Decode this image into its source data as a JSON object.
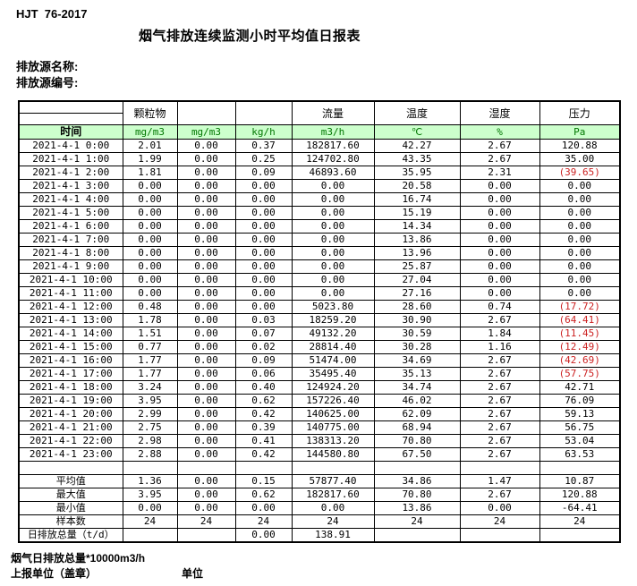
{
  "page": {
    "doc_code": "HJT  76-2017",
    "title": "烟气排放连续监测小时平均值日报表",
    "source_name_label": "排放源名称:",
    "source_code_label": "排放源编号:"
  },
  "colors": {
    "header_row_bg": "#ccffcc",
    "unit_text_green": "#007700",
    "out_of_range_red": "#cc2222"
  },
  "table": {
    "group_headers": [
      "",
      "颗粒物",
      "",
      "",
      "流量",
      "温度",
      "湿度",
      "压力"
    ],
    "time_header": "时间",
    "units": [
      "mg/m3",
      "mg/m3",
      "kg/h",
      "m3/h",
      "℃",
      "%",
      "Pa"
    ],
    "rows": [
      {
        "time": "2021-4-1 0:00",
        "values": [
          "2.01",
          "0.00",
          "0.37",
          "182817.60",
          "42.27",
          "2.67",
          "120.88"
        ]
      },
      {
        "time": "2021-4-1 1:00",
        "values": [
          "1.99",
          "0.00",
          "0.25",
          "124702.80",
          "43.35",
          "2.67",
          "35.00"
        ]
      },
      {
        "time": "2021-4-1 2:00",
        "values": [
          "1.81",
          "0.00",
          "0.09",
          "46893.60",
          "35.95",
          "2.31",
          "(39.65)"
        ]
      },
      {
        "time": "2021-4-1 3:00",
        "values": [
          "0.00",
          "0.00",
          "0.00",
          "0.00",
          "20.58",
          "0.00",
          "0.00"
        ]
      },
      {
        "time": "2021-4-1 4:00",
        "values": [
          "0.00",
          "0.00",
          "0.00",
          "0.00",
          "16.74",
          "0.00",
          "0.00"
        ]
      },
      {
        "time": "2021-4-1 5:00",
        "values": [
          "0.00",
          "0.00",
          "0.00",
          "0.00",
          "15.19",
          "0.00",
          "0.00"
        ]
      },
      {
        "time": "2021-4-1 6:00",
        "values": [
          "0.00",
          "0.00",
          "0.00",
          "0.00",
          "14.34",
          "0.00",
          "0.00"
        ]
      },
      {
        "time": "2021-4-1 7:00",
        "values": [
          "0.00",
          "0.00",
          "0.00",
          "0.00",
          "13.86",
          "0.00",
          "0.00"
        ]
      },
      {
        "time": "2021-4-1 8:00",
        "values": [
          "0.00",
          "0.00",
          "0.00",
          "0.00",
          "13.96",
          "0.00",
          "0.00"
        ]
      },
      {
        "time": "2021-4-1 9:00",
        "values": [
          "0.00",
          "0.00",
          "0.00",
          "0.00",
          "25.87",
          "0.00",
          "0.00"
        ]
      },
      {
        "time": "2021-4-1 10:00",
        "values": [
          "0.00",
          "0.00",
          "0.00",
          "0.00",
          "27.04",
          "0.00",
          "0.00"
        ]
      },
      {
        "time": "2021-4-1 11:00",
        "values": [
          "0.00",
          "0.00",
          "0.00",
          "0.00",
          "27.16",
          "0.00",
          "0.00"
        ]
      },
      {
        "time": "2021-4-1 12:00",
        "values": [
          "0.48",
          "0.00",
          "0.00",
          "5023.80",
          "28.60",
          "0.74",
          "(17.72)"
        ]
      },
      {
        "time": "2021-4-1 13:00",
        "values": [
          "1.78",
          "0.00",
          "0.03",
          "18259.20",
          "30.90",
          "2.67",
          "(64.41)"
        ]
      },
      {
        "time": "2021-4-1 14:00",
        "values": [
          "1.51",
          "0.00",
          "0.07",
          "49132.20",
          "30.59",
          "1.84",
          "(11.45)"
        ]
      },
      {
        "time": "2021-4-1 15:00",
        "values": [
          "0.77",
          "0.00",
          "0.02",
          "28814.40",
          "30.28",
          "1.16",
          "(12.49)"
        ]
      },
      {
        "time": "2021-4-1 16:00",
        "values": [
          "1.77",
          "0.00",
          "0.09",
          "51474.00",
          "34.69",
          "2.67",
          "(42.69)"
        ]
      },
      {
        "time": "2021-4-1 17:00",
        "values": [
          "1.77",
          "0.00",
          "0.06",
          "35495.40",
          "35.13",
          "2.67",
          "(57.75)"
        ]
      },
      {
        "time": "2021-4-1 18:00",
        "values": [
          "3.24",
          "0.00",
          "0.40",
          "124924.20",
          "34.74",
          "2.67",
          "42.71"
        ]
      },
      {
        "time": "2021-4-1 19:00",
        "values": [
          "3.95",
          "0.00",
          "0.62",
          "157226.40",
          "46.02",
          "2.67",
          "76.09"
        ]
      },
      {
        "time": "2021-4-1 20:00",
        "values": [
          "2.99",
          "0.00",
          "0.42",
          "140625.00",
          "62.09",
          "2.67",
          "59.13"
        ]
      },
      {
        "time": "2021-4-1 21:00",
        "values": [
          "2.75",
          "0.00",
          "0.39",
          "140775.00",
          "68.94",
          "2.67",
          "56.75"
        ]
      },
      {
        "time": "2021-4-1 22:00",
        "values": [
          "2.98",
          "0.00",
          "0.41",
          "138313.20",
          "70.80",
          "2.67",
          "53.04"
        ]
      },
      {
        "time": "2021-4-1 23:00",
        "values": [
          "2.88",
          "0.00",
          "0.42",
          "144580.80",
          "67.50",
          "2.67",
          "63.53"
        ]
      }
    ],
    "summary": [
      {
        "label": "",
        "values": [
          "",
          "",
          "",
          "",
          "",
          "",
          ""
        ]
      },
      {
        "label": "平均值",
        "values": [
          "1.36",
          "0.00",
          "0.15",
          "57877.40",
          "34.86",
          "1.47",
          "10.87"
        ]
      },
      {
        "label": "最大值",
        "values": [
          "3.95",
          "0.00",
          "0.62",
          "182817.60",
          "70.80",
          "2.67",
          "120.88"
        ]
      },
      {
        "label": "最小值",
        "values": [
          "0.00",
          "0.00",
          "0.00",
          "0.00",
          "13.86",
          "0.00",
          "-64.41"
        ]
      },
      {
        "label": "样本数",
        "values": [
          "24",
          "24",
          "24",
          "24",
          "24",
          "24",
          "24"
        ]
      },
      {
        "label": "日排放总量（t/d）",
        "values": [
          "",
          "",
          "0.00",
          "138.91",
          "",
          "",
          ""
        ]
      }
    ]
  },
  "footer": {
    "note": "烟气日排放总量*10000m3/h",
    "report_unit_label": "上报单位（盖章）",
    "unit_label": "单位"
  }
}
